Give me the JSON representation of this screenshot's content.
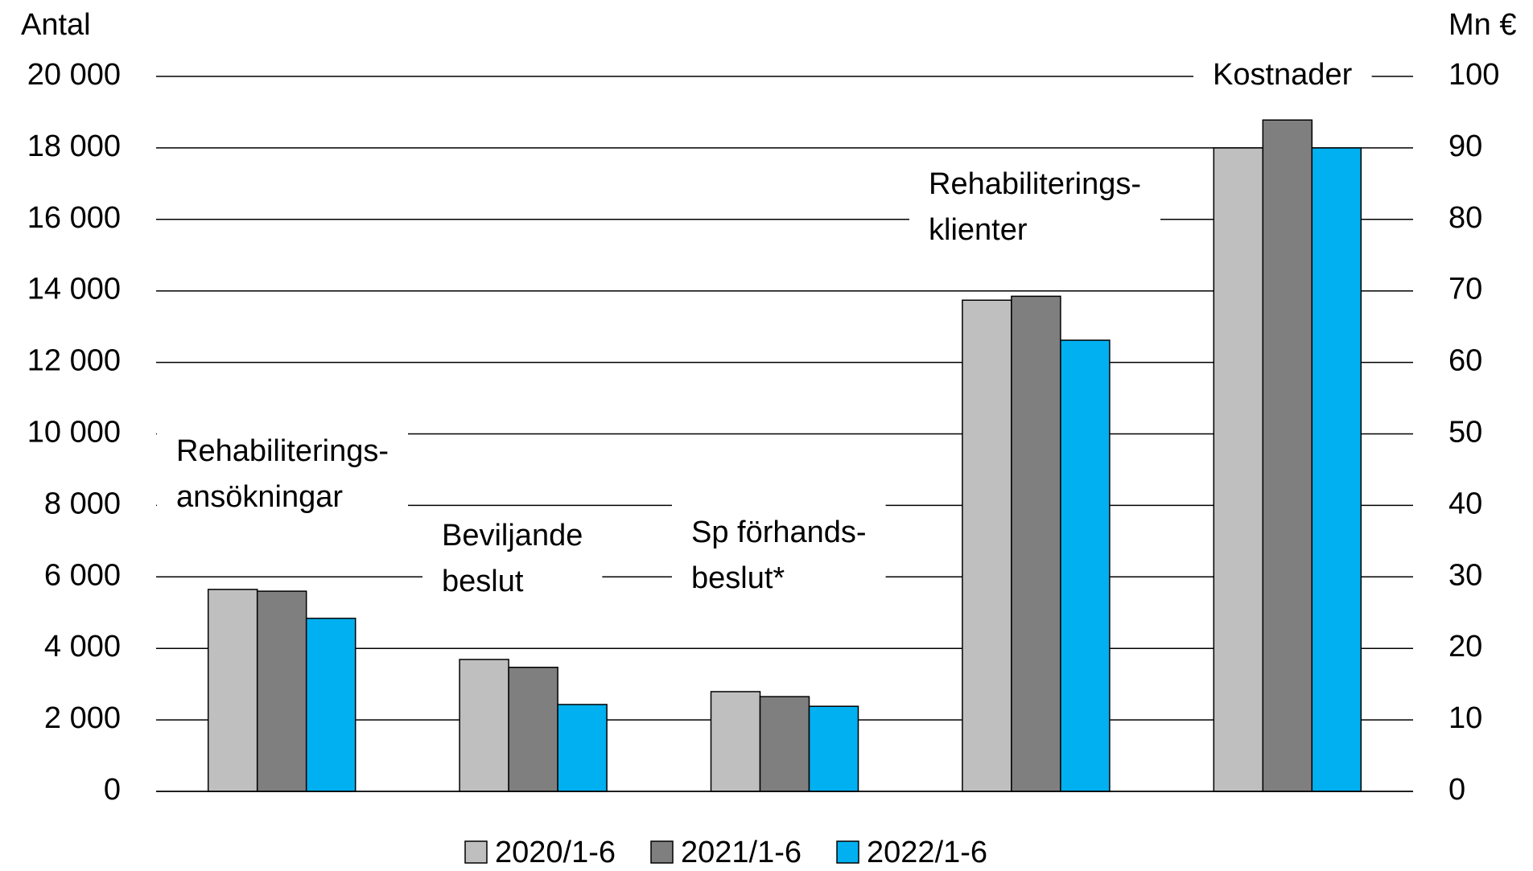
{
  "chart_data": {
    "type": "bar",
    "y_label": "Antal",
    "y2_label": "Mn €",
    "categories": [
      [
        "Rehabiliterings-",
        "ansökningar"
      ],
      [
        "Beviljande",
        "beslut"
      ],
      [
        "Sp förhands-",
        "beslut*"
      ],
      [
        "Rehabiliterings-",
        "klienter"
      ],
      [
        "Kostnader"
      ]
    ],
    "category_axis": [
      "y",
      "y",
      "y",
      "y",
      "y2"
    ],
    "series": [
      {
        "name": "2020/1-6",
        "color": "#bfbfbf",
        "values": [
          5650,
          3690,
          2790,
          13740,
          90
        ]
      },
      {
        "name": "2021/1-6",
        "color": "#7f7f7f",
        "values": [
          5600,
          3470,
          2650,
          13850,
          93.9
        ]
      },
      {
        "name": "2022/1-6",
        "color": "#00b0f0",
        "values": [
          4840,
          2430,
          2380,
          12620,
          90
        ]
      }
    ],
    "ylim": [
      0,
      20000
    ],
    "yticks": [
      0,
      {
        "value": 2000,
        "label": "2 000"
      },
      {
        "value": 4000,
        "label": "4 000"
      },
      {
        "value": 6000,
        "label": "6 000"
      },
      {
        "value": 8000,
        "label": "8 000"
      },
      {
        "value": 10000,
        "label": "10 000"
      },
      {
        "value": 12000,
        "label": "12 000"
      },
      {
        "value": 14000,
        "label": "14 000"
      },
      {
        "value": 16000,
        "label": "16 000"
      },
      {
        "value": 18000,
        "label": "18 000"
      },
      {
        "value": 20000,
        "label": "20 000"
      }
    ],
    "y2lim": [
      0,
      100
    ],
    "y2ticks": [
      0,
      10,
      20,
      30,
      40,
      50,
      60,
      70,
      80,
      90,
      100
    ],
    "grid": true,
    "legend": "bottom"
  }
}
